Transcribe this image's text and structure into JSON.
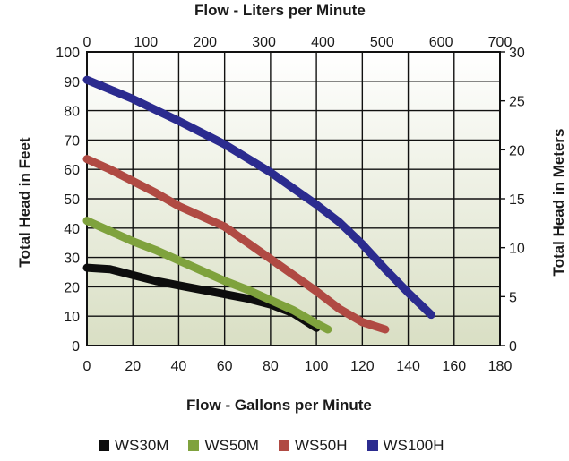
{
  "chart_data": {
    "type": "line",
    "top_title": "Flow - Liters per Minute",
    "bottom_title": "Flow - Gallons per Minute",
    "left_title": "Total Head in Feet",
    "right_title": "Total Head in Meters",
    "x_bottom": {
      "min": 0,
      "max": 180,
      "ticks": [
        "0",
        "20",
        "40",
        "60",
        "80",
        "100",
        "120",
        "140",
        "160",
        "180"
      ]
    },
    "x_top": {
      "min": 0,
      "max": 700,
      "ticks": [
        "0",
        "100",
        "200",
        "300",
        "400",
        "500",
        "600",
        "700"
      ]
    },
    "y_left": {
      "min": 0,
      "max": 100,
      "ticks": [
        "0",
        "10",
        "20",
        "30",
        "40",
        "50",
        "60",
        "70",
        "80",
        "90",
        "100"
      ]
    },
    "y_right": {
      "min": 0,
      "max": 30,
      "ticks": [
        "0",
        "5",
        "10",
        "15",
        "20",
        "25",
        "30"
      ]
    },
    "grid": true,
    "legend_position": "bottom",
    "series": [
      {
        "name": "WS30M",
        "color": "#0d0d0d",
        "x": [
          0,
          10,
          20,
          30,
          40,
          50,
          60,
          70,
          80,
          90,
          100
        ],
        "y": [
          26.5,
          26,
          24,
          22,
          20.5,
          19,
          17.5,
          16,
          14,
          11,
          6
        ]
      },
      {
        "name": "WS50M",
        "color": "#7fa23d",
        "x": [
          0,
          10,
          20,
          30,
          40,
          50,
          60,
          70,
          80,
          90,
          100,
          105
        ],
        "y": [
          42.5,
          39,
          35.5,
          32.5,
          29,
          25.5,
          22,
          19,
          15.5,
          12,
          7.5,
          5.5
        ]
      },
      {
        "name": "WS50H",
        "color": "#b04a43",
        "x": [
          0,
          10,
          20,
          30,
          40,
          50,
          60,
          70,
          80,
          90,
          100,
          110,
          120,
          130
        ],
        "y": [
          63.5,
          60,
          56,
          52,
          47.5,
          44,
          40.5,
          35,
          29.5,
          24,
          18.5,
          12.5,
          8,
          5.5
        ]
      },
      {
        "name": "WS100H",
        "color": "#2b2b8f",
        "x": [
          0,
          20,
          40,
          60,
          80,
          100,
          110,
          120,
          130,
          140,
          150
        ],
        "y": [
          90.5,
          84,
          76.5,
          68.5,
          59,
          48,
          42,
          34.5,
          26,
          18,
          10.5
        ]
      }
    ]
  }
}
